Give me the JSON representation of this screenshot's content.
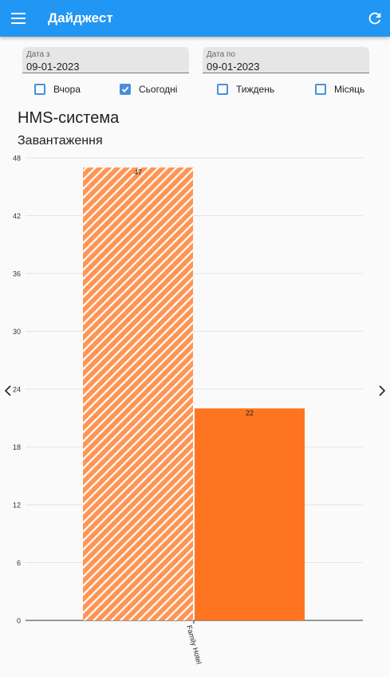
{
  "appbar": {
    "title": "Дайджест",
    "menu_icon": "menu-icon",
    "refresh_icon": "refresh-icon",
    "color": "#2196f3"
  },
  "filters": {
    "date_from": {
      "label": "Дата з",
      "value": "09-01-2023"
    },
    "date_to": {
      "label": "Дата по",
      "value": "09-01-2023"
    },
    "periods": [
      {
        "label": "Вчора",
        "checked": false
      },
      {
        "label": "Сьогодні",
        "checked": true
      },
      {
        "label": "Тиждень",
        "checked": false
      },
      {
        "label": "Місяць",
        "checked": false
      }
    ]
  },
  "section": {
    "title": "HMS-система",
    "subtitle": "Завантаження"
  },
  "chart_data": {
    "type": "bar",
    "categories": [
      "Family Hotel"
    ],
    "series": [
      {
        "values": [
          47
        ],
        "color": "#ff7420",
        "pattern": "hatched"
      },
      {
        "values": [
          22
        ],
        "color": "#ff7420",
        "pattern": "solid"
      }
    ],
    "data_labels": [
      "47",
      "22"
    ],
    "yticks": [
      "0",
      "6",
      "12",
      "18",
      "24",
      "30",
      "36",
      "42",
      "48"
    ],
    "ylim": [
      0,
      48
    ],
    "grid": true
  }
}
